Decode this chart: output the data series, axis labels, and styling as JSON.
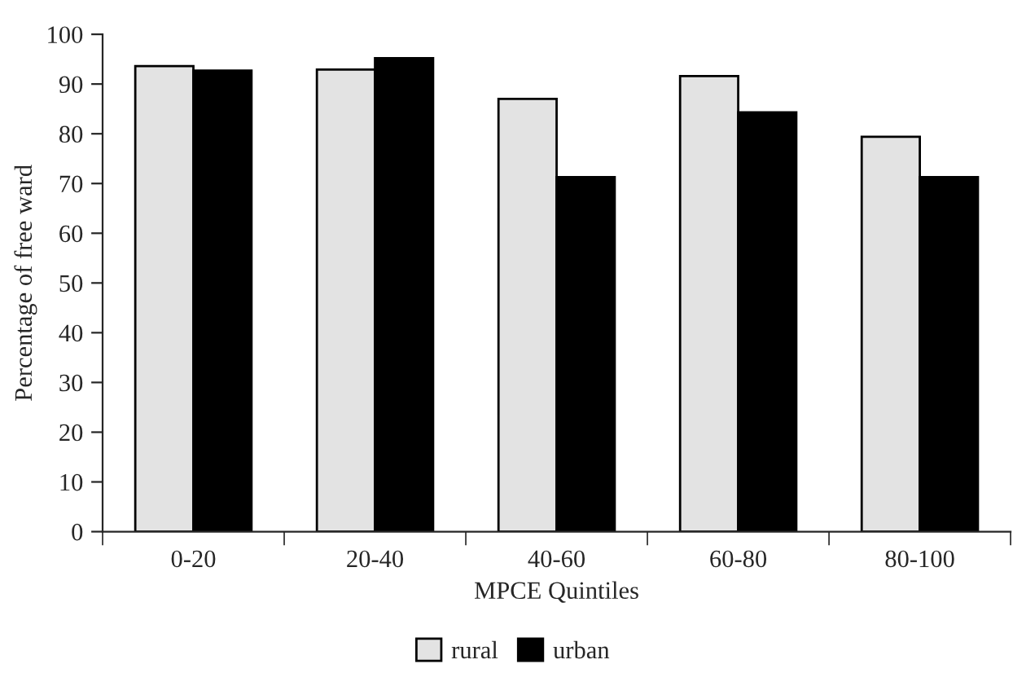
{
  "chart_data": {
    "type": "bar",
    "xlabel": "MPCE Quintiles",
    "ylabel": "Percentage of free ward",
    "categories": [
      "0-20",
      "20-40",
      "40-60",
      "60-80",
      "80-100"
    ],
    "series": [
      {
        "name": "rural",
        "color": "#e3e3e3",
        "values": [
          93.6,
          92.9,
          87,
          91.6,
          79.4
        ]
      },
      {
        "name": "urban",
        "color": "#000000",
        "values": [
          92.7,
          95.2,
          71.3,
          84.3,
          71.3
        ]
      }
    ],
    "ylim": [
      0,
      100
    ],
    "yticks": [
      0,
      10,
      20,
      30,
      40,
      50,
      60,
      70,
      80,
      90,
      100
    ],
    "grid": false,
    "legend": "bottom"
  }
}
